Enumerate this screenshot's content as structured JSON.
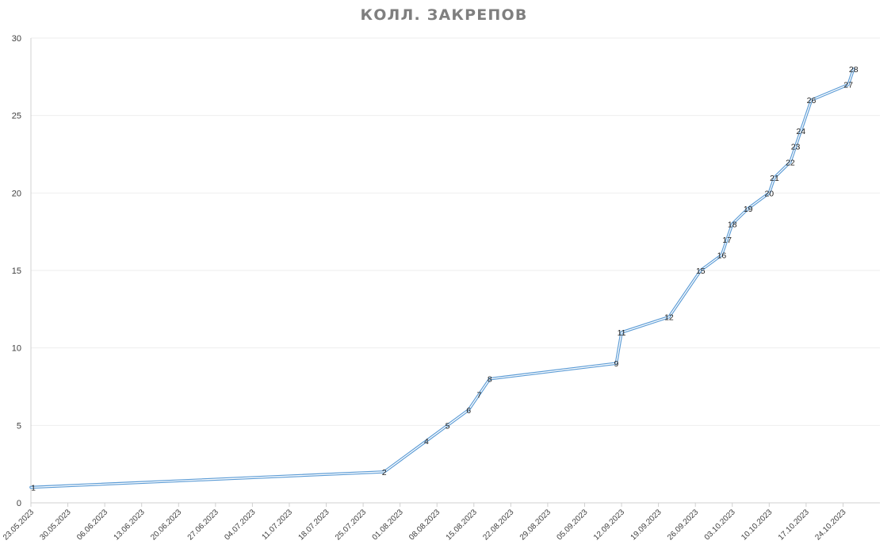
{
  "chart_data": {
    "type": "line",
    "title": "КОЛЛ. ЗАКРЕПОВ",
    "xlabel": "",
    "ylabel": "",
    "ylim": [
      0,
      30
    ],
    "yticks": [
      0,
      5,
      10,
      15,
      20,
      25,
      30
    ],
    "xlim": [
      "2023-05-23",
      "2023-10-31"
    ],
    "xticks": [
      "23.05.2023",
      "30.05.2023",
      "06.06.2023",
      "13.06.2023",
      "20.06.2023",
      "27.06.2023",
      "04.07.2023",
      "11.07.2023",
      "18.07.2023",
      "25.07.2023",
      "01.08.2023",
      "08.08.2023",
      "15.08.2023",
      "22.08.2023",
      "29.08.2023",
      "05.09.2023",
      "12.09.2023",
      "19.09.2023",
      "26.09.2023",
      "03.10.2023",
      "10.10.2023",
      "17.10.2023",
      "24.10.2023"
    ],
    "grid": true,
    "series": [
      {
        "color": "#5b9bd5",
        "points": [
          {
            "date": "2023-05-23",
            "y": 1,
            "label": "1"
          },
          {
            "date": "2023-07-29",
            "y": 2,
            "label": "2"
          },
          {
            "date": "2023-08-06",
            "y": 4,
            "label": "4"
          },
          {
            "date": "2023-08-10",
            "y": 5,
            "label": "5"
          },
          {
            "date": "2023-08-14",
            "y": 6,
            "label": "6"
          },
          {
            "date": "2023-08-16",
            "y": 7,
            "label": "7"
          },
          {
            "date": "2023-08-18",
            "y": 8,
            "label": "8"
          },
          {
            "date": "2023-09-11",
            "y": 9,
            "label": "9"
          },
          {
            "date": "2023-09-12",
            "y": 11,
            "label": "11"
          },
          {
            "date": "2023-09-21",
            "y": 12,
            "label": "12"
          },
          {
            "date": "2023-09-27",
            "y": 15,
            "label": "15"
          },
          {
            "date": "2023-10-01",
            "y": 16,
            "label": "16"
          },
          {
            "date": "2023-10-02",
            "y": 17,
            "label": "17"
          },
          {
            "date": "2023-10-03",
            "y": 18,
            "label": "18"
          },
          {
            "date": "2023-10-06",
            "y": 19,
            "label": "19"
          },
          {
            "date": "2023-10-10",
            "y": 20,
            "label": "20"
          },
          {
            "date": "2023-10-11",
            "y": 21,
            "label": "21"
          },
          {
            "date": "2023-10-14",
            "y": 22,
            "label": "22"
          },
          {
            "date": "2023-10-15",
            "y": 23,
            "label": "23"
          },
          {
            "date": "2023-10-16",
            "y": 24,
            "label": "24"
          },
          {
            "date": "2023-10-18",
            "y": 26,
            "label": "26"
          },
          {
            "date": "2023-10-25",
            "y": 27,
            "label": "27"
          },
          {
            "date": "2023-10-26",
            "y": 28,
            "label": "28"
          }
        ]
      }
    ]
  }
}
